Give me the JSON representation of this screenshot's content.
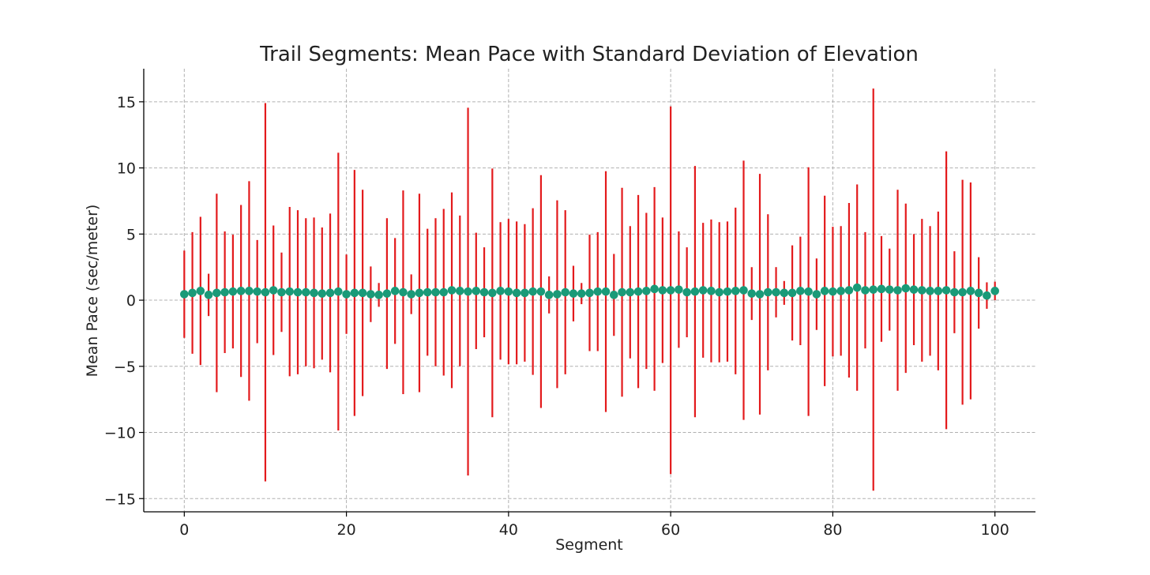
{
  "chart_data": {
    "type": "scatter",
    "title": "Trail Segments: Mean Pace with Standard Deviation of Elevation",
    "xlabel": "Segment",
    "ylabel": "Mean Pace (sec/meter)",
    "xlim": [
      -5,
      105
    ],
    "ylim": [
      -16,
      17.5
    ],
    "x_ticks": [
      0,
      20,
      40,
      60,
      80,
      100
    ],
    "y_ticks": [
      -15,
      -10,
      -5,
      0,
      5,
      10,
      15
    ],
    "y_tick_labels": [
      "−15",
      "−10",
      "−5",
      "0",
      "5",
      "10",
      "15"
    ],
    "grid": true,
    "marker_color": "#1a9a78",
    "errorbar_color": "#e31a1c",
    "x": [
      0,
      1,
      2,
      3,
      4,
      5,
      6,
      7,
      8,
      9,
      10,
      11,
      12,
      13,
      14,
      15,
      16,
      17,
      18,
      19,
      20,
      21,
      22,
      23,
      24,
      25,
      26,
      27,
      28,
      29,
      30,
      31,
      32,
      33,
      34,
      35,
      36,
      37,
      38,
      39,
      40,
      41,
      42,
      43,
      44,
      45,
      46,
      47,
      48,
      49,
      50,
      51,
      52,
      53,
      54,
      55,
      56,
      57,
      58,
      59,
      60,
      61,
      62,
      63,
      64,
      65,
      66,
      67,
      68,
      69,
      70,
      71,
      72,
      73,
      74,
      75,
      76,
      77,
      78,
      79,
      80,
      81,
      82,
      83,
      84,
      85,
      86,
      87,
      88,
      89,
      90,
      91,
      92,
      93,
      94,
      95,
      96,
      97,
      98,
      99,
      100
    ],
    "mean": [
      0.45,
      0.55,
      0.7,
      0.4,
      0.55,
      0.6,
      0.65,
      0.7,
      0.7,
      0.65,
      0.6,
      0.75,
      0.6,
      0.65,
      0.6,
      0.6,
      0.55,
      0.5,
      0.55,
      0.65,
      0.45,
      0.55,
      0.55,
      0.45,
      0.4,
      0.5,
      0.7,
      0.6,
      0.45,
      0.55,
      0.6,
      0.6,
      0.6,
      0.75,
      0.7,
      0.65,
      0.7,
      0.6,
      0.55,
      0.7,
      0.65,
      0.55,
      0.55,
      0.65,
      0.65,
      0.4,
      0.45,
      0.6,
      0.5,
      0.5,
      0.55,
      0.65,
      0.65,
      0.4,
      0.6,
      0.6,
      0.65,
      0.7,
      0.85,
      0.75,
      0.75,
      0.8,
      0.6,
      0.65,
      0.75,
      0.7,
      0.6,
      0.65,
      0.7,
      0.75,
      0.5,
      0.45,
      0.6,
      0.6,
      0.55,
      0.55,
      0.7,
      0.65,
      0.45,
      0.7,
      0.65,
      0.7,
      0.75,
      0.95,
      0.75,
      0.8,
      0.85,
      0.8,
      0.75,
      0.9,
      0.8,
      0.75,
      0.7,
      0.7,
      0.75,
      0.6,
      0.6,
      0.7,
      0.55,
      0.35,
      0.7
    ],
    "std": [
      3.3,
      4.6,
      5.6,
      1.6,
      7.5,
      4.6,
      4.3,
      6.5,
      8.3,
      3.9,
      14.3,
      4.9,
      3.0,
      6.4,
      6.2,
      5.6,
      5.7,
      5.0,
      6.0,
      10.5,
      3.0,
      9.3,
      7.8,
      2.1,
      0.9,
      5.7,
      4.0,
      7.7,
      1.5,
      7.5,
      4.8,
      5.6,
      6.3,
      7.4,
      5.7,
      13.9,
      4.4,
      3.4,
      9.4,
      5.2,
      5.5,
      5.4,
      5.2,
      6.3,
      8.8,
      1.4,
      7.1,
      6.2,
      2.1,
      0.8,
      4.4,
      4.5,
      9.1,
      3.1,
      7.9,
      5.0,
      7.3,
      5.9,
      7.7,
      5.5,
      13.9,
      4.4,
      3.4,
      9.5,
      5.1,
      5.4,
      5.3,
      5.3,
      6.3,
      9.8,
      2.0,
      9.1,
      5.9,
      1.9,
      0.9,
      3.6,
      4.1,
      9.4,
      2.7,
      7.2,
      4.9,
      4.9,
      6.6,
      7.8,
      4.4,
      15.2,
      4.0,
      3.1,
      7.6,
      6.4,
      4.2,
      5.4,
      4.9,
      6.0,
      10.5,
      3.1,
      8.5,
      8.2,
      2.7,
      1.0,
      0.7
    ]
  }
}
